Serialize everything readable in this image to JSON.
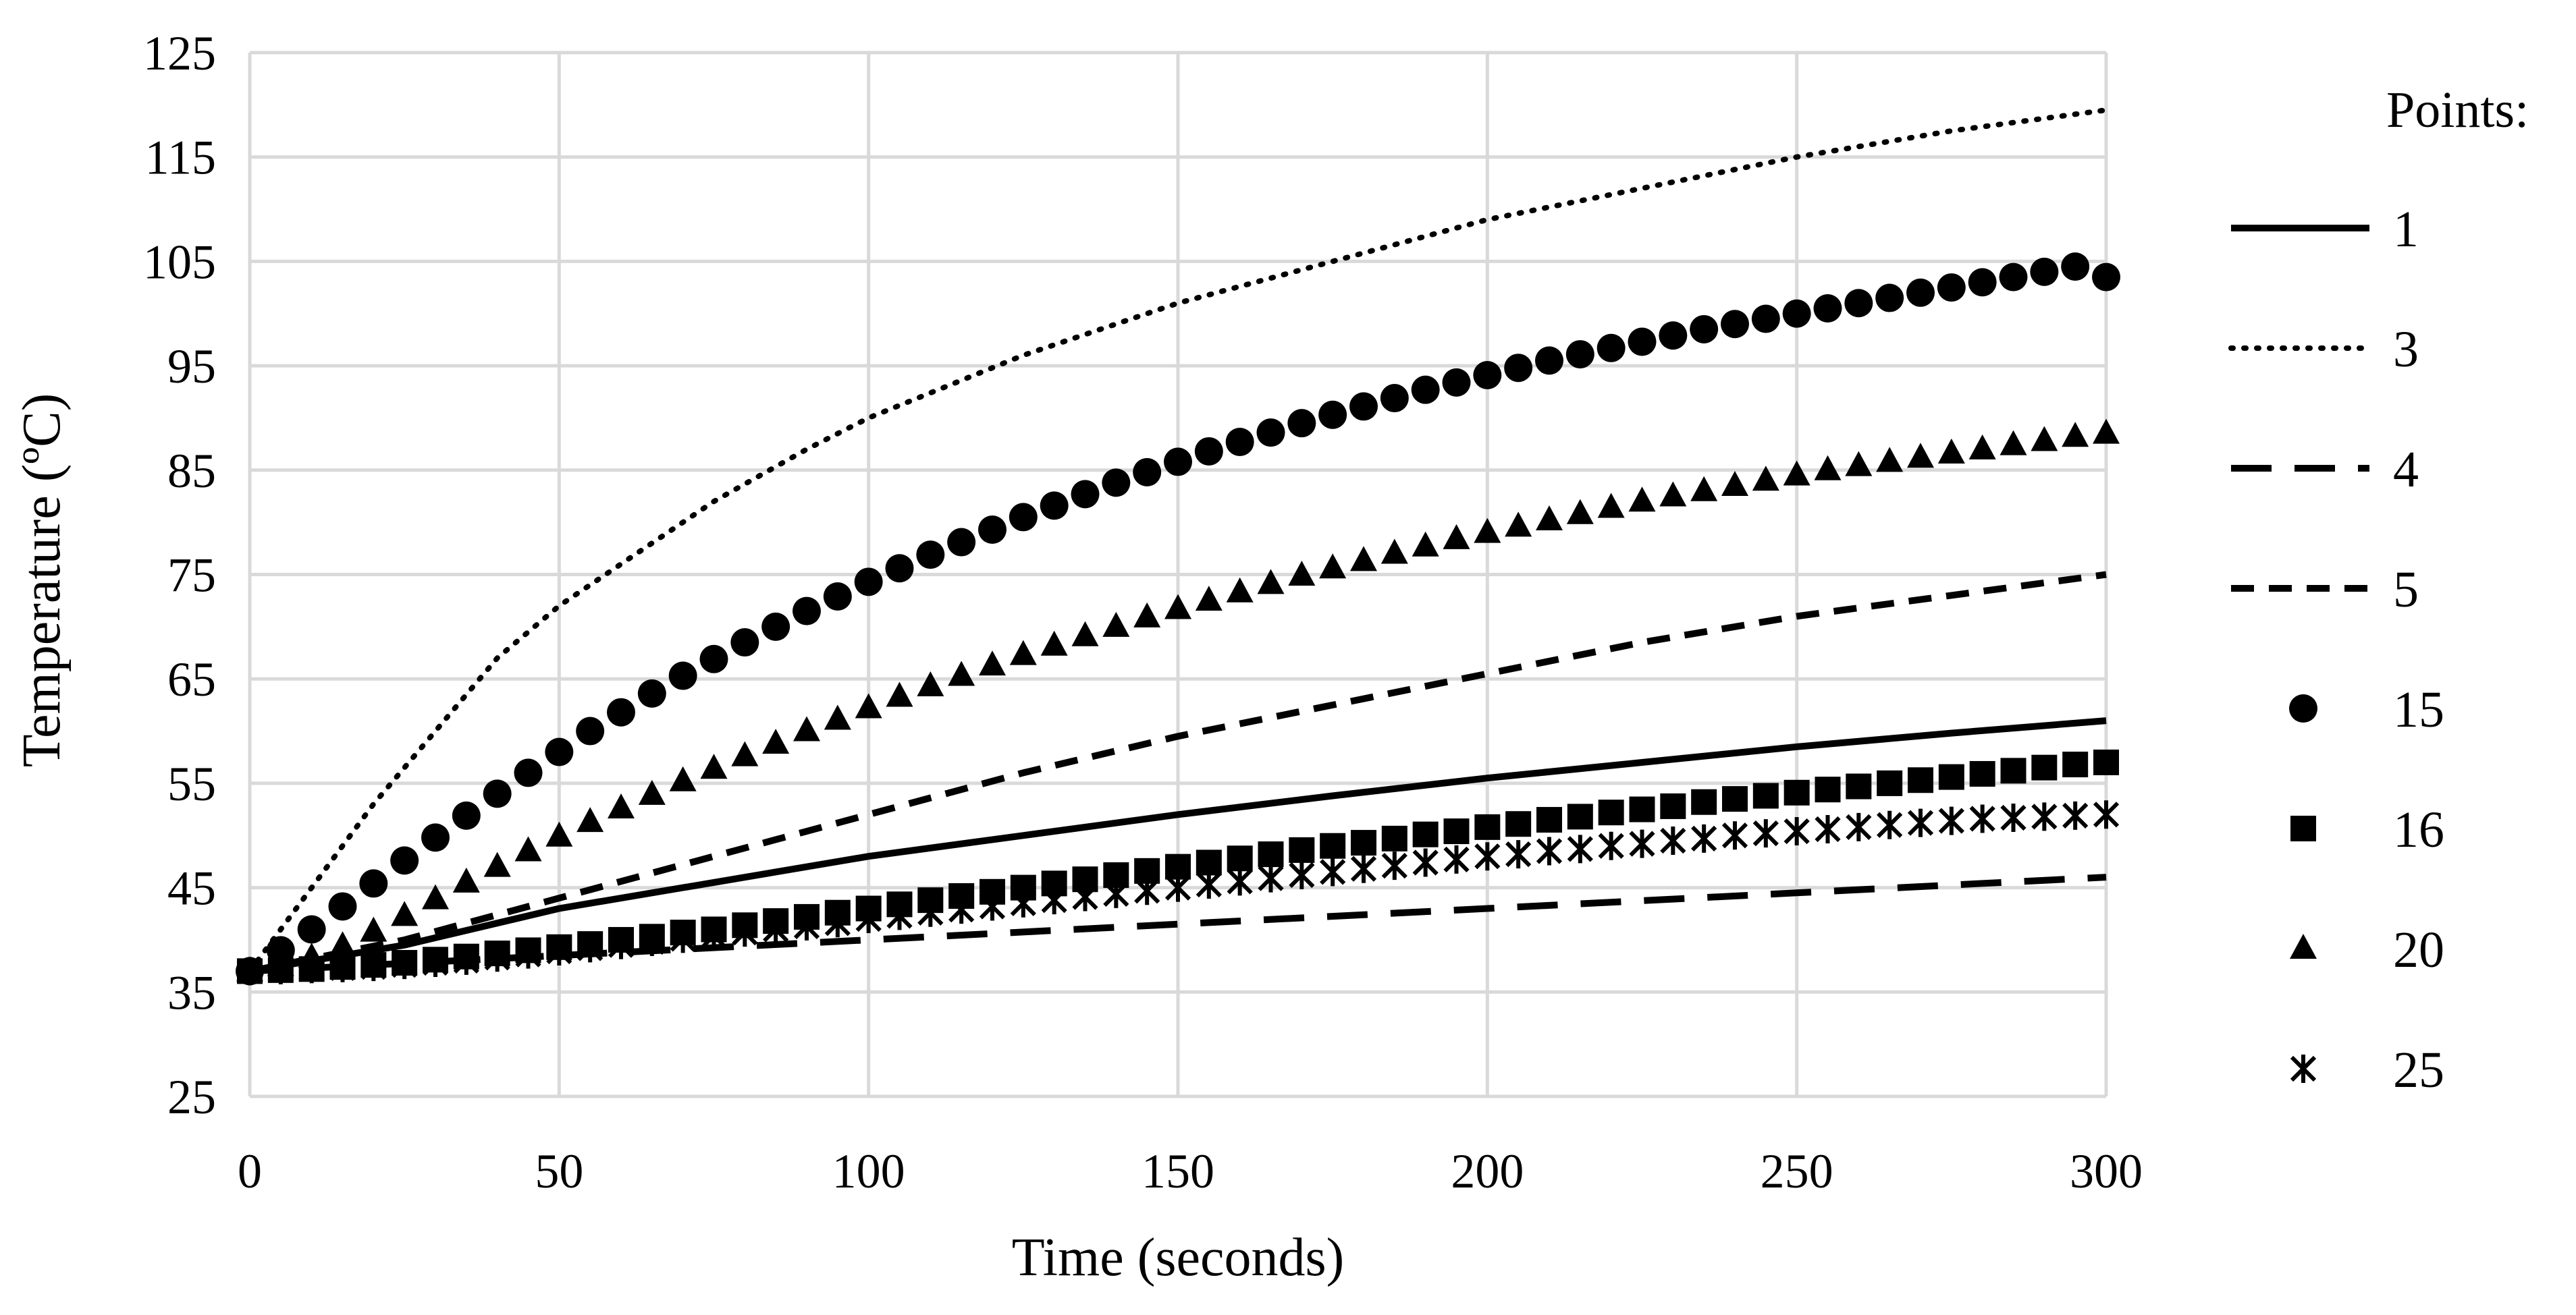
{
  "chart_data": {
    "type": "line",
    "title": "",
    "xlabel": "Time (seconds)",
    "ylabel": "Temperature (ºC)",
    "xlim": [
      0,
      300
    ],
    "ylim": [
      25,
      125
    ],
    "xticks": [
      0,
      50,
      100,
      150,
      200,
      250,
      300
    ],
    "yticks": [
      25,
      35,
      45,
      55,
      65,
      75,
      85,
      95,
      105,
      115,
      125
    ],
    "grid": true,
    "legend_title": "Points:",
    "legend_position": "right",
    "colors": {
      "ink": "#000000",
      "grid": "#d9d9d9"
    },
    "series": [
      {
        "name": "1",
        "style": "solid",
        "marker": "none",
        "x": [
          0,
          25,
          50,
          75,
          100,
          125,
          150,
          175,
          200,
          225,
          250,
          275,
          300
        ],
        "y": [
          37,
          39.5,
          43,
          45.5,
          48,
          50,
          52,
          53.8,
          55.5,
          57,
          58.5,
          59.8,
          61
        ]
      },
      {
        "name": "3",
        "style": "dotted",
        "marker": "none",
        "x": [
          0,
          10,
          20,
          30,
          40,
          50,
          60,
          75,
          90,
          100,
          125,
          150,
          175,
          200,
          225,
          250,
          275,
          300
        ],
        "y": [
          37,
          45,
          53,
          60,
          67,
          72,
          76,
          82,
          87,
          90,
          96,
          101,
          105,
          109,
          112,
          115,
          117.5,
          119.5
        ]
      },
      {
        "name": "4",
        "style": "long-dash",
        "marker": "none",
        "x": [
          0,
          50,
          100,
          150,
          200,
          250,
          300
        ],
        "y": [
          37,
          38.5,
          40,
          41.5,
          43,
          44.5,
          46
        ]
      },
      {
        "name": "5",
        "style": "dash",
        "marker": "none",
        "x": [
          0,
          25,
          50,
          75,
          100,
          125,
          150,
          175,
          200,
          225,
          250,
          275,
          300
        ],
        "y": [
          37,
          40,
          44,
          48,
          52,
          56,
          59.5,
          62.5,
          65.5,
          68.5,
          71,
          73,
          75
        ]
      },
      {
        "name": "15",
        "style": "none",
        "marker": "circle",
        "x": [
          0,
          5,
          10,
          15,
          20,
          25,
          30,
          35,
          40,
          45,
          50,
          55,
          60,
          65,
          70,
          75,
          80,
          85,
          90,
          95,
          100,
          105,
          110,
          115,
          120,
          125,
          130,
          135,
          140,
          145,
          150,
          155,
          160,
          165,
          170,
          175,
          180,
          185,
          190,
          195,
          200,
          205,
          210,
          215,
          220,
          225,
          230,
          235,
          240,
          245,
          250,
          255,
          260,
          265,
          270,
          275,
          280,
          285,
          290,
          295,
          300
        ],
        "y": [
          37,
          39,
          41,
          43.2,
          45.4,
          47.6,
          49.8,
          51.9,
          54,
          56,
          58,
          60,
          61.8,
          63.6,
          65.3,
          66.9,
          68.5,
          70,
          71.5,
          72.9,
          74.3,
          75.6,
          76.9,
          78.1,
          79.3,
          80.5,
          81.6,
          82.7,
          83.8,
          84.8,
          85.8,
          86.8,
          87.7,
          88.6,
          89.5,
          90.3,
          91.1,
          91.9,
          92.7,
          93.4,
          94.1,
          94.8,
          95.5,
          96.1,
          96.7,
          97.3,
          97.9,
          98.5,
          99,
          99.5,
          100,
          100.5,
          101,
          101.5,
          102,
          102.5,
          103,
          103.5,
          104,
          104.5,
          103.5
        ]
      },
      {
        "name": "16",
        "style": "none",
        "marker": "square",
        "x": [
          0,
          5,
          10,
          15,
          20,
          25,
          30,
          35,
          40,
          45,
          50,
          55,
          60,
          65,
          70,
          75,
          80,
          85,
          90,
          95,
          100,
          105,
          110,
          115,
          120,
          125,
          130,
          135,
          140,
          145,
          150,
          155,
          160,
          165,
          170,
          175,
          180,
          185,
          190,
          195,
          200,
          205,
          210,
          215,
          220,
          225,
          230,
          235,
          240,
          245,
          250,
          255,
          260,
          265,
          270,
          275,
          280,
          285,
          290,
          295,
          300
        ],
        "y": [
          37,
          37.1,
          37.2,
          37.4,
          37.6,
          37.8,
          38.1,
          38.4,
          38.7,
          39,
          39.3,
          39.6,
          40,
          40.3,
          40.7,
          41,
          41.4,
          41.8,
          42.2,
          42.6,
          43,
          43.4,
          43.8,
          44.2,
          44.6,
          45,
          45.4,
          45.8,
          46.2,
          46.6,
          47,
          47.4,
          47.8,
          48.2,
          48.6,
          49,
          49.3,
          49.7,
          50.1,
          50.4,
          50.8,
          51.1,
          51.5,
          51.8,
          52.2,
          52.5,
          52.8,
          53.2,
          53.5,
          53.8,
          54.1,
          54.4,
          54.7,
          55,
          55.3,
          55.6,
          55.9,
          56.2,
          56.5,
          56.8,
          57
        ]
      },
      {
        "name": "20",
        "style": "none",
        "marker": "triangle",
        "x": [
          0,
          5,
          10,
          15,
          20,
          25,
          30,
          35,
          40,
          45,
          50,
          55,
          60,
          65,
          70,
          75,
          80,
          85,
          90,
          95,
          100,
          105,
          110,
          115,
          120,
          125,
          130,
          135,
          140,
          145,
          150,
          155,
          160,
          165,
          170,
          175,
          180,
          185,
          190,
          195,
          200,
          205,
          210,
          215,
          220,
          225,
          230,
          235,
          240,
          245,
          250,
          255,
          260,
          265,
          270,
          275,
          280,
          285,
          290,
          295,
          300
        ],
        "y": [
          37,
          37.5,
          38.3,
          39.4,
          40.8,
          42.3,
          43.9,
          45.5,
          47,
          48.5,
          49.9,
          51.3,
          52.6,
          53.9,
          55.2,
          56.4,
          57.6,
          58.8,
          60,
          61.1,
          62.2,
          63.3,
          64.3,
          65.3,
          66.3,
          67.3,
          68.2,
          69.1,
          70,
          70.9,
          71.7,
          72.5,
          73.3,
          74.1,
          74.9,
          75.6,
          76.3,
          77,
          77.7,
          78.4,
          79,
          79.6,
          80.2,
          80.8,
          81.4,
          82,
          82.5,
          83,
          83.5,
          84,
          84.5,
          85,
          85.4,
          85.8,
          86.2,
          86.6,
          87,
          87.4,
          87.8,
          88.2,
          88.5
        ]
      },
      {
        "name": "25",
        "style": "none",
        "marker": "x-star",
        "x": [
          0,
          5,
          10,
          15,
          20,
          25,
          30,
          35,
          40,
          45,
          50,
          55,
          60,
          65,
          70,
          75,
          80,
          85,
          90,
          95,
          100,
          105,
          110,
          115,
          120,
          125,
          130,
          135,
          140,
          145,
          150,
          155,
          160,
          165,
          170,
          175,
          180,
          185,
          190,
          195,
          200,
          205,
          210,
          215,
          220,
          225,
          230,
          235,
          240,
          245,
          250,
          255,
          260,
          265,
          270,
          275,
          280,
          285,
          290,
          295,
          300
        ],
        "y": [
          37,
          37.1,
          37.2,
          37.3,
          37.4,
          37.6,
          37.8,
          38,
          38.3,
          38.6,
          38.9,
          39.2,
          39.5,
          39.8,
          40.1,
          40.4,
          40.7,
          41,
          41.3,
          41.6,
          42,
          42.3,
          42.6,
          42.9,
          43.2,
          43.5,
          43.8,
          44.1,
          44.4,
          44.7,
          45,
          45.3,
          45.6,
          45.9,
          46.2,
          46.5,
          46.8,
          47.1,
          47.4,
          47.7,
          48,
          48.2,
          48.5,
          48.7,
          49,
          49.2,
          49.5,
          49.7,
          50,
          50.2,
          50.4,
          50.6,
          50.8,
          51,
          51.2,
          51.4,
          51.6,
          51.7,
          51.8,
          51.9,
          52
        ]
      }
    ]
  }
}
